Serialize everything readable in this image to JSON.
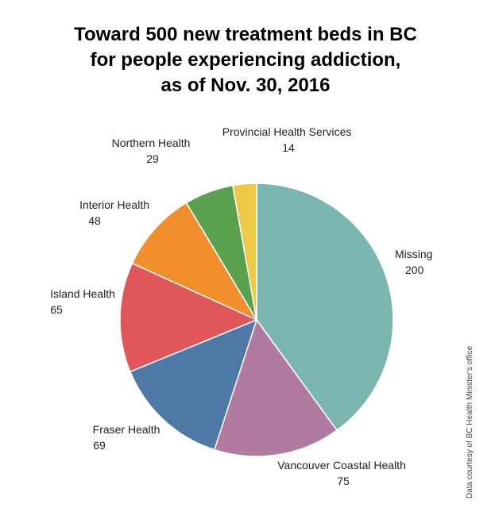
{
  "chart_data": {
    "type": "pie",
    "title_lines": [
      "Toward 500 new treatment beds in BC",
      "for people experiencing addiction,",
      "as of Nov. 30, 2016"
    ],
    "total": 500,
    "slices": [
      {
        "name": "Missing",
        "value": 200,
        "color": "#7ab5b0"
      },
      {
        "name": "Vancouver Coastal Health",
        "value": 75,
        "color": "#b07aa1"
      },
      {
        "name": "Fraser Health",
        "value": 69,
        "color": "#4e79a7"
      },
      {
        "name": "Island Health",
        "value": 65,
        "color": "#e15759"
      },
      {
        "name": "Interior Health",
        "value": 48,
        "color": "#f28e2b"
      },
      {
        "name": "Northern Health",
        "value": 29,
        "color": "#59a14f"
      },
      {
        "name": "Provincial Health Services",
        "value": 14,
        "color": "#edc948"
      }
    ]
  },
  "credit": "Data courtesy of BC Health Minister's office"
}
